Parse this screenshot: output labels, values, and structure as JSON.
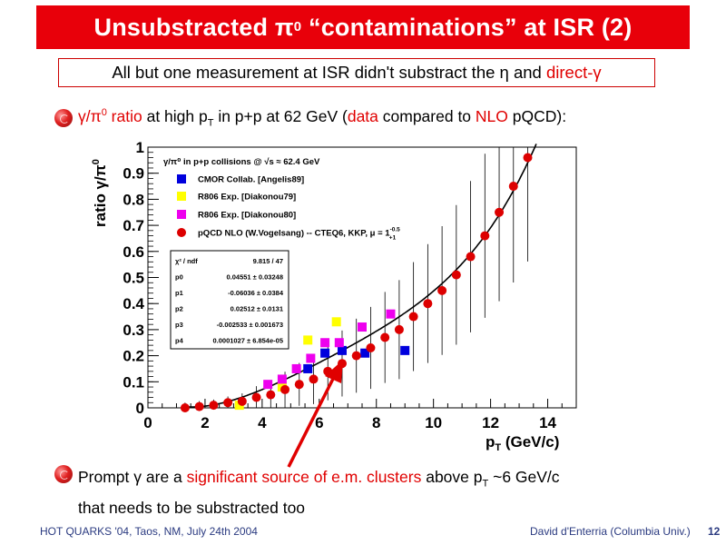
{
  "slide": {
    "title_pre": "Unsubstracted π",
    "title_sup": "0",
    "title_post": " “contaminations” at ISR (2)",
    "subtitle_pre": "All but one measurement at ISR didn't substract the η and ",
    "subtitle_red": "direct-γ",
    "bullet1": {
      "gamma": "γ/π",
      "sup0": "0",
      "ratio": " ratio",
      "mid": " at high p",
      "subT": "T",
      "mid2": " in p+p at 62 GeV (",
      "data": "data",
      "mid3": " compared to ",
      "nlo": "NLO",
      "end": " pQCD):"
    },
    "bullet2": {
      "p1": "Prompt γ are a ",
      "red": "significant source of e.m. clusters",
      "p2": " above p",
      "subT": "T",
      "p3": " ~6 GeV/c",
      "line2": "that needs to be substracted too"
    },
    "footer_left": "HOT QUARKS '04, Taos, NM, July 24th 2004",
    "footer_right": "David d'Enterria (Columbia Univ.)",
    "page_number": "12"
  },
  "chart_data": {
    "type": "scatter",
    "plot_title": "γ/π⁰ in p+p collisions @ √s ≈ 62.4 GeV",
    "xlabel": "p_T (GeV/c)",
    "ylabel": "ratio γ/π⁰",
    "xlim": [
      0,
      15
    ],
    "ylim": [
      0,
      1
    ],
    "x_ticks": [
      "0",
      "2",
      "4",
      "6",
      "8",
      "10",
      "12",
      "14"
    ],
    "y_ticks": [
      "0",
      "0.1",
      "0.2",
      "0.3",
      "0.4",
      "0.5",
      "0.6",
      "0.7",
      "0.8",
      "0.9",
      "1"
    ],
    "legend_position": "top-left",
    "series": [
      {
        "name": "CMOR Collab. [Angelis89]",
        "marker": "square",
        "color": "#0000dd",
        "points": [
          [
            5.6,
            0.15
          ],
          [
            6.2,
            0.21
          ],
          [
            6.8,
            0.22
          ],
          [
            7.6,
            0.21
          ],
          [
            9.0,
            0.22
          ]
        ]
      },
      {
        "name": "R806 Exp. [Diakonou79]",
        "marker": "square",
        "color": "#ffff00",
        "points": [
          [
            3.2,
            0.01
          ],
          [
            4.7,
            0.08
          ],
          [
            5.6,
            0.26
          ],
          [
            6.6,
            0.33
          ]
        ]
      },
      {
        "name": "R806 Exp. [Diakonou80]",
        "marker": "square",
        "color": "#ee00ee",
        "points": [
          [
            4.2,
            0.09
          ],
          [
            4.7,
            0.11
          ],
          [
            5.2,
            0.15
          ],
          [
            5.7,
            0.19
          ],
          [
            6.2,
            0.25
          ],
          [
            6.7,
            0.25
          ],
          [
            7.5,
            0.31
          ],
          [
            8.5,
            0.36
          ]
        ]
      },
      {
        "name": "pQCD NLO (W.Vogelsang) -- CTEQ6, KKP, μ = 1",
        "marker": "circle",
        "color": "#dd0000",
        "points": [
          [
            1.3,
            0.0
          ],
          [
            1.8,
            0.005
          ],
          [
            2.3,
            0.01
          ],
          [
            2.8,
            0.02
          ],
          [
            3.3,
            0.025
          ],
          [
            3.8,
            0.04
          ],
          [
            4.3,
            0.05
          ],
          [
            4.8,
            0.07
          ],
          [
            5.3,
            0.09
          ],
          [
            5.8,
            0.11
          ],
          [
            6.3,
            0.14
          ],
          [
            6.8,
            0.17
          ],
          [
            7.3,
            0.2
          ],
          [
            7.8,
            0.23
          ],
          [
            8.3,
            0.27
          ],
          [
            8.8,
            0.3
          ],
          [
            9.3,
            0.35
          ],
          [
            9.8,
            0.4
          ],
          [
            10.3,
            0.45
          ],
          [
            10.8,
            0.51
          ],
          [
            11.3,
            0.58
          ],
          [
            11.8,
            0.66
          ],
          [
            12.3,
            0.75
          ],
          [
            12.8,
            0.85
          ],
          [
            13.3,
            0.96
          ]
        ]
      }
    ],
    "legend_mu_sup": "-0.5",
    "legend_mu_sub": "+1",
    "fit_curve": {
      "function": "p0 + p1*x + p2*x^2 + p3*x^3 + p4*x^4",
      "p0": 0.04551,
      "p1": -0.06036,
      "p2": 0.02512,
      "p3": -0.002533,
      "p4": 0.0001027
    },
    "fit_box": {
      "rows": [
        {
          "name": "χ² / ndf",
          "value": "9.815 / 47"
        },
        {
          "name": "p0",
          "value": "0.04551 ± 0.03248"
        },
        {
          "name": "p1",
          "value": "-0.06036 ± 0.0384"
        },
        {
          "name": "p2",
          "value": "0.02512 ± 0.0131"
        },
        {
          "name": "p3",
          "value": "-0.002533 ± 0.001673"
        },
        {
          "name": "p4",
          "value": "0.0001027 ± 6.854e-05"
        }
      ]
    },
    "arrow_color": "#e00000"
  }
}
